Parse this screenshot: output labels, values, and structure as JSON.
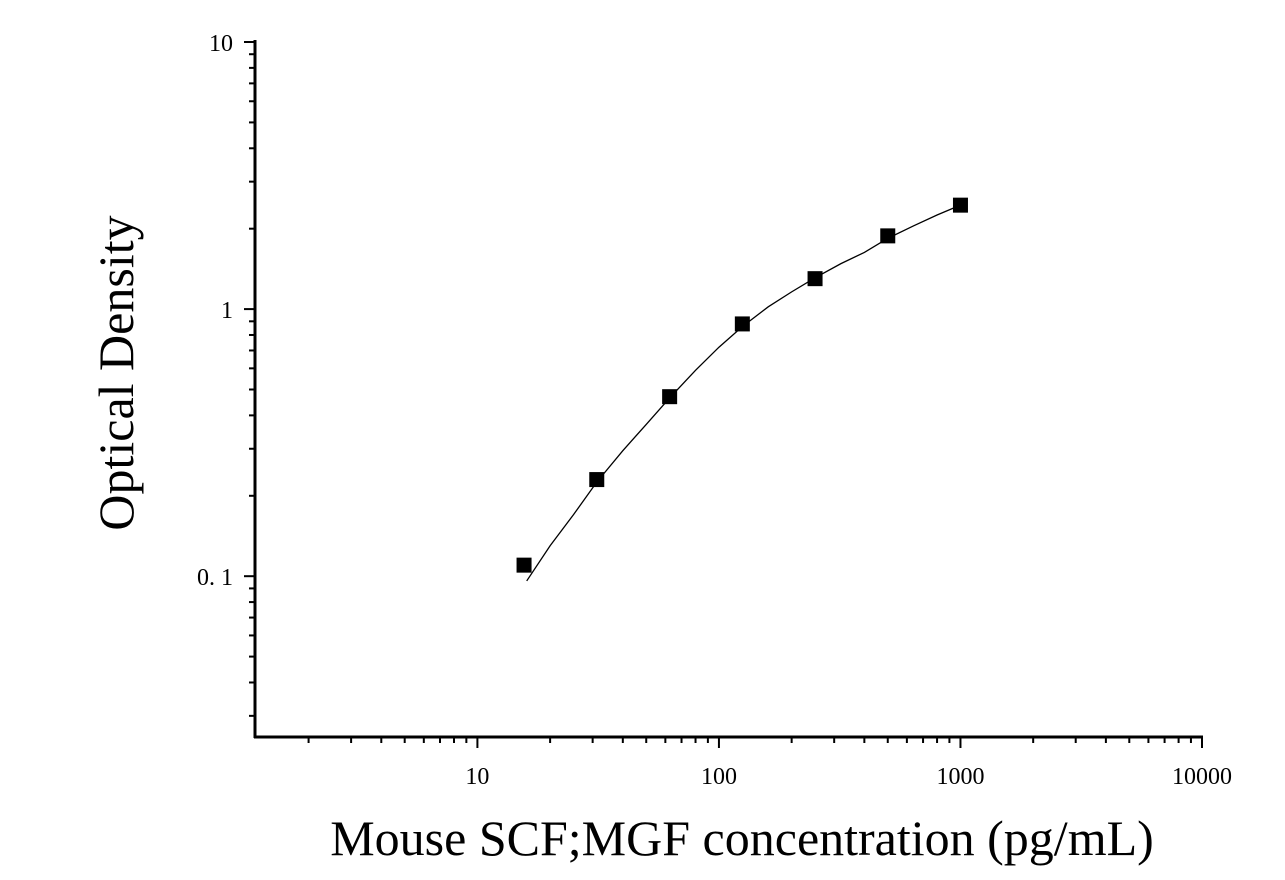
{
  "chart_data": {
    "type": "scatter",
    "title": "",
    "xlabel": "Mouse SCF;MGF concentration (pg/mL)",
    "ylabel": "Optical Density",
    "x_scale": "log",
    "y_scale": "log",
    "xlim": [
      1.2,
      10000
    ],
    "ylim": [
      0.025,
      10
    ],
    "x_ticks": [
      {
        "value": 10,
        "label": "10"
      },
      {
        "value": 100,
        "label": "100"
      },
      {
        "value": 1000,
        "label": "1000"
      },
      {
        "value": 10000,
        "label": "10000"
      }
    ],
    "y_ticks": [
      {
        "value": 0.1,
        "label": "0. 1"
      },
      {
        "value": 1,
        "label": "1"
      },
      {
        "value": 10,
        "label": "10"
      }
    ],
    "grid": false,
    "legend": "none",
    "marker": "square",
    "marker_color": "#000000",
    "line_color": "#000000",
    "series": [
      {
        "x": [
          15.6,
          31.2,
          62.5,
          125,
          250,
          500,
          1000
        ],
        "y": [
          0.11,
          0.23,
          0.47,
          0.88,
          1.3,
          1.88,
          2.45
        ]
      }
    ],
    "fit_curve": {
      "x": [
        16,
        20,
        25,
        31.2,
        40,
        50,
        62.5,
        80,
        100,
        125,
        160,
        200,
        250,
        320,
        400,
        500,
        640,
        800,
        1000
      ],
      "y": [
        0.096,
        0.13,
        0.17,
        0.225,
        0.295,
        0.37,
        0.465,
        0.59,
        0.72,
        0.86,
        1.02,
        1.16,
        1.31,
        1.48,
        1.63,
        1.84,
        2.05,
        2.25,
        2.45
      ]
    }
  }
}
